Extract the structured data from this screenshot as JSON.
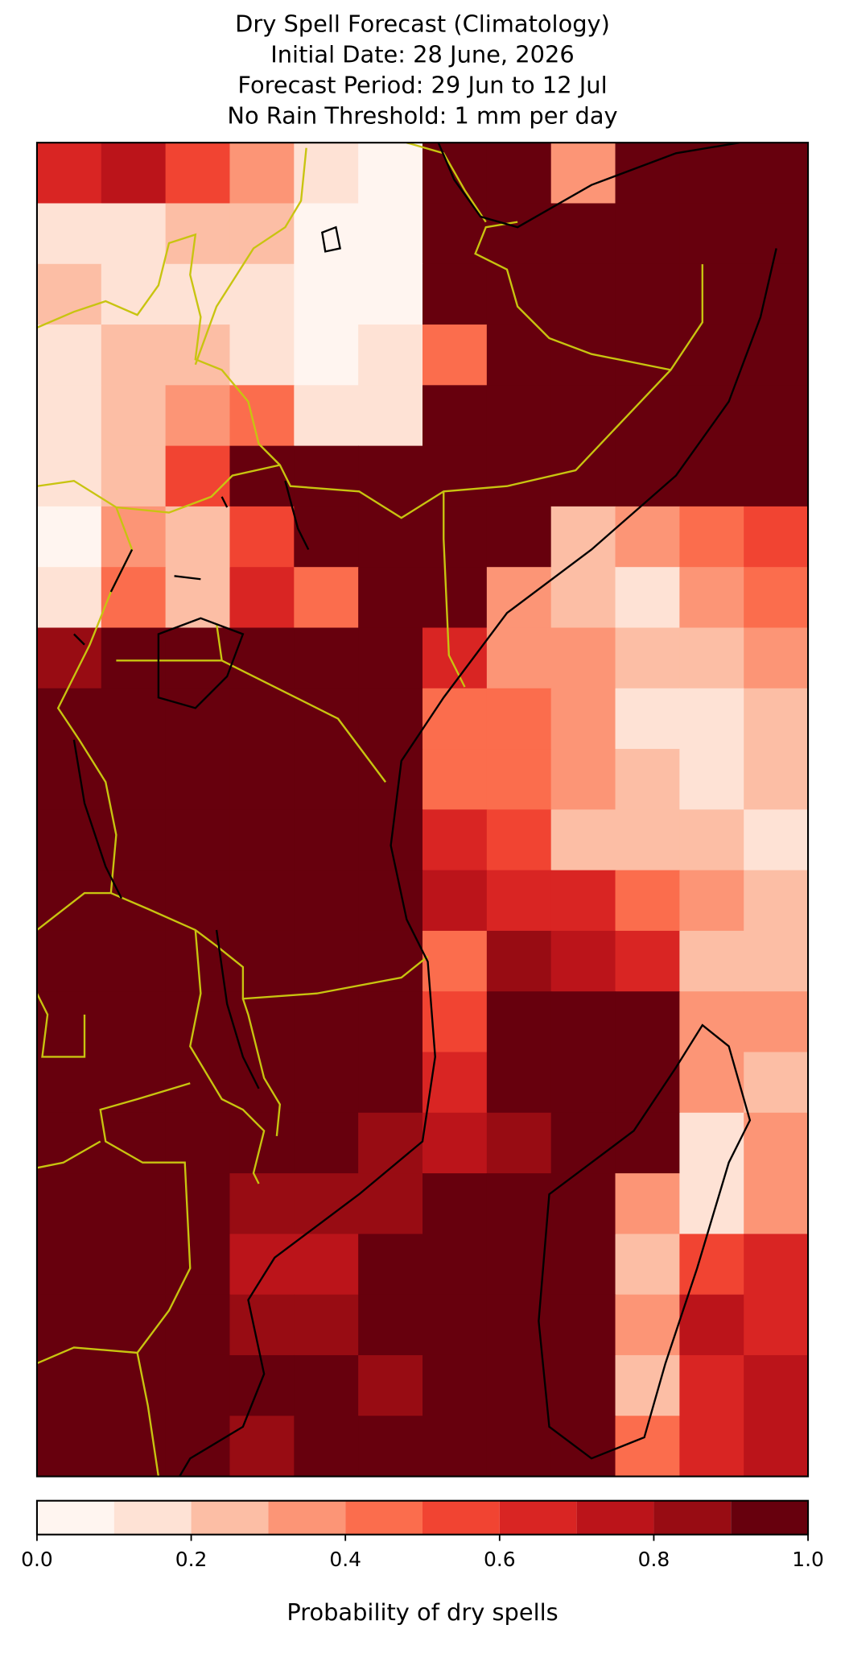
{
  "chart_data": {
    "type": "heatmap",
    "title": [
      "Dry Spell Forecast (Climatology)",
      "Initial Date: 28 June, 2026",
      "Forecast Period: 29 Jun to 12 Jul",
      "No Rain Threshold: 1 mm per day"
    ],
    "values": [
      [
        0.6,
        0.7,
        0.5,
        0.3,
        0.1,
        0.0,
        1,
        1,
        0.3,
        1,
        1,
        1
      ],
      [
        0.1,
        0.1,
        0.2,
        0.2,
        0.0,
        0.0,
        1,
        1,
        1,
        1,
        1,
        1
      ],
      [
        0.2,
        0.1,
        0.1,
        0.1,
        0.0,
        0.0,
        1,
        1,
        1,
        1,
        1,
        1
      ],
      [
        0.1,
        0.2,
        0.2,
        0.1,
        0.0,
        0.1,
        0.4,
        1,
        1,
        1,
        1,
        1
      ],
      [
        0.1,
        0.2,
        0.3,
        0.4,
        0.1,
        0.1,
        1,
        1,
        1,
        1,
        1,
        1
      ],
      [
        0.1,
        0.2,
        0.5,
        1,
        1,
        1,
        1,
        1,
        1,
        1,
        1,
        0.9
      ],
      [
        0.0,
        0.3,
        0.2,
        0.5,
        1,
        1,
        1,
        1,
        0.2,
        0.3,
        0.4,
        0.5
      ],
      [
        0.1,
        0.4,
        0.2,
        0.6,
        0.4,
        1,
        1,
        0.3,
        0.2,
        0.1,
        0.3,
        0.4
      ],
      [
        0.8,
        1,
        1,
        1,
        1,
        1,
        0.6,
        0.3,
        0.3,
        0.2,
        0.2,
        0.3
      ],
      [
        1,
        1,
        1,
        1,
        1,
        1,
        0.4,
        0.4,
        0.3,
        0.1,
        0.1,
        0.2
      ],
      [
        1,
        1,
        1,
        1,
        1,
        0.9,
        0.4,
        0.4,
        0.3,
        0.2,
        0.1,
        0.2
      ],
      [
        1,
        1,
        1,
        1,
        1,
        1,
        0.6,
        0.5,
        0.2,
        0.2,
        0.2,
        0.1
      ],
      [
        1,
        1,
        1,
        1,
        1,
        1,
        0.7,
        0.6,
        0.6,
        0.4,
        0.3,
        0.2
      ],
      [
        1,
        1,
        1,
        0.9,
        1,
        1,
        0.4,
        0.8,
        0.7,
        0.6,
        0.2,
        0.2
      ],
      [
        1,
        1,
        1,
        1,
        1,
        1,
        0.5,
        1,
        1,
        1,
        0.3,
        0.3
      ],
      [
        1,
        1,
        1,
        1,
        1,
        1,
        0.6,
        1,
        1,
        1,
        0.3,
        0.2
      ],
      [
        1,
        1,
        1,
        1,
        1,
        0.8,
        0.7,
        0.8,
        1,
        1,
        0.1,
        0.3
      ],
      [
        1,
        1,
        1,
        0.8,
        0.8,
        0.8,
        1,
        1,
        1,
        0.3,
        0.1,
        0.3
      ],
      [
        1,
        1,
        1,
        0.7,
        0.7,
        1,
        1,
        1,
        1,
        0.2,
        0.5,
        0.6
      ],
      [
        1,
        1,
        1,
        0.8,
        0.8,
        1,
        1,
        1,
        1,
        0.3,
        0.7,
        0.6
      ],
      [
        1,
        1,
        1,
        1,
        0.9,
        0.8,
        1,
        1,
        1,
        0.2,
        0.6,
        0.7
      ],
      [
        1,
        1,
        0.9,
        0.8,
        0.9,
        1,
        1,
        1,
        1,
        0.4,
        0.6,
        0.7
      ]
    ],
    "colorbar": {
      "label": "Probability of dry spells",
      "levels": [
        0,
        0.1,
        0.2,
        0.3,
        0.4,
        0.5,
        0.6,
        0.7,
        0.8,
        0.9,
        1
      ],
      "colors": [
        "#fff5f0",
        "#fee2d5",
        "#fcbea5",
        "#fc9576",
        "#fb6d4d",
        "#f14432",
        "#d92523",
        "#bb141a",
        "#980c13",
        "#67000d"
      ],
      "ticks": [
        {
          "value": 0,
          "label": "0.0"
        },
        0.2,
        0.4,
        0.6,
        0.8,
        {
          "value": 1,
          "label": "1.0"
        }
      ]
    }
  }
}
